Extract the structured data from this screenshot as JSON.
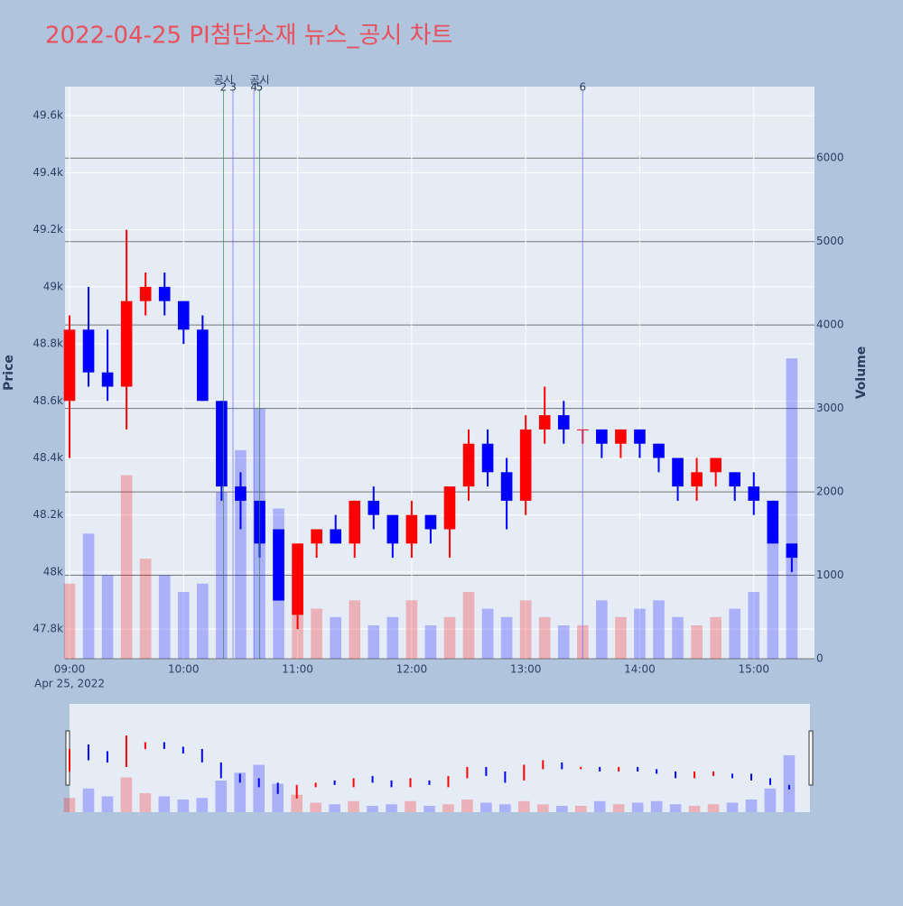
{
  "chart_data": {
    "type": "candlestick",
    "title": "2022-04-25 PI첨단소재 뉴스_공시 차트",
    "y_title": "Price",
    "y2_title": "Volume",
    "x_date_label": "Apr 25, 2022",
    "increasing_color": "#ff0000",
    "decreasing_color": "#0000ff",
    "x": [
      "09:00",
      "09:10",
      "09:20",
      "09:30",
      "09:40",
      "09:50",
      "10:00",
      "10:10",
      "10:20",
      "10:30",
      "10:40",
      "10:50",
      "11:00",
      "11:10",
      "11:20",
      "11:30",
      "11:40",
      "11:50",
      "12:00",
      "12:10",
      "12:20",
      "12:30",
      "12:40",
      "12:50",
      "13:00",
      "13:10",
      "13:20",
      "13:30",
      "13:40",
      "13:50",
      "14:00",
      "14:10",
      "14:20",
      "14:30",
      "14:40",
      "14:50",
      "15:00",
      "15:10",
      "15:20"
    ],
    "open": [
      48600,
      48850,
      48700,
      48650,
      48950,
      49000,
      48950,
      48850,
      48600,
      48300,
      48250,
      48150,
      47850,
      48100,
      48150,
      48100,
      48250,
      48200,
      48100,
      48200,
      48150,
      48300,
      48450,
      48350,
      48250,
      48500,
      48550,
      48500,
      48500,
      48450,
      48500,
      48450,
      48400,
      48300,
      48350,
      48350,
      48300,
      48250,
      48100
    ],
    "high": [
      48900,
      49000,
      48850,
      49200,
      49050,
      49050,
      48950,
      48900,
      48600,
      48350,
      48250,
      48150,
      48100,
      48150,
      48200,
      48250,
      48300,
      48200,
      48250,
      48200,
      48300,
      48500,
      48500,
      48400,
      48550,
      48650,
      48600,
      48500,
      48500,
      48500,
      48500,
      48450,
      48400,
      48400,
      48400,
      48350,
      48350,
      48250,
      48100
    ],
    "low": [
      48400,
      48650,
      48600,
      48500,
      48900,
      48900,
      48800,
      48600,
      48250,
      48150,
      48050,
      47900,
      47800,
      48050,
      48100,
      48050,
      48150,
      48050,
      48050,
      48100,
      48050,
      48250,
      48300,
      48150,
      48200,
      48450,
      48450,
      48450,
      48400,
      48400,
      48400,
      48350,
      48250,
      48250,
      48300,
      48250,
      48200,
      48100,
      48000
    ],
    "close": [
      48850,
      48700,
      48650,
      48950,
      49000,
      48950,
      48850,
      48600,
      48300,
      48250,
      48100,
      47900,
      48100,
      48150,
      48100,
      48250,
      48200,
      48100,
      48200,
      48150,
      48300,
      48450,
      48350,
      48250,
      48500,
      48550,
      48500,
      48500,
      48450,
      48500,
      48450,
      48400,
      48300,
      48350,
      48400,
      48300,
      48250,
      48100,
      48050
    ],
    "volume": [
      900,
      1500,
      1000,
      2200,
      1200,
      1000,
      800,
      900,
      2000,
      2500,
      3000,
      1800,
      1100,
      600,
      500,
      700,
      400,
      500,
      700,
      400,
      500,
      800,
      600,
      500,
      700,
      500,
      400,
      400,
      700,
      500,
      600,
      700,
      500,
      400,
      500,
      600,
      800,
      1500,
      3600
    ],
    "events": [
      {
        "x": "10:21",
        "num": 2,
        "tag": "공시"
      },
      {
        "x": "10:26",
        "num": 3
      },
      {
        "x": "10:37",
        "num": 4
      },
      {
        "x": "10:40",
        "num": 5,
        "tag": "공시"
      },
      {
        "x": "13:30",
        "num": 6
      }
    ],
    "xlim": [
      "09:00",
      "15:31"
    ],
    "xticks": [
      "09:00",
      "10:00",
      "11:00",
      "12:00",
      "13:00",
      "14:00",
      "15:00"
    ],
    "ylim": [
      47696,
      49702
    ],
    "yticks": [
      {
        "value": 47800,
        "label": "47.8k"
      },
      {
        "value": 48000,
        "label": "48k"
      },
      {
        "value": 48200,
        "label": "48.2k"
      },
      {
        "value": 48400,
        "label": "48.4k"
      },
      {
        "value": 48600,
        "label": "48.6k"
      },
      {
        "value": 48800,
        "label": "48.8k"
      },
      {
        "value": 49000,
        "label": "49k"
      },
      {
        "value": 49200,
        "label": "49.2k"
      },
      {
        "value": 49400,
        "label": "49.4k"
      },
      {
        "value": 49600,
        "label": "49.6k"
      }
    ],
    "y2lim": [
      0,
      6857
    ],
    "y2ticks": [
      0,
      1000,
      2000,
      3000,
      4000,
      5000,
      6000
    ]
  }
}
